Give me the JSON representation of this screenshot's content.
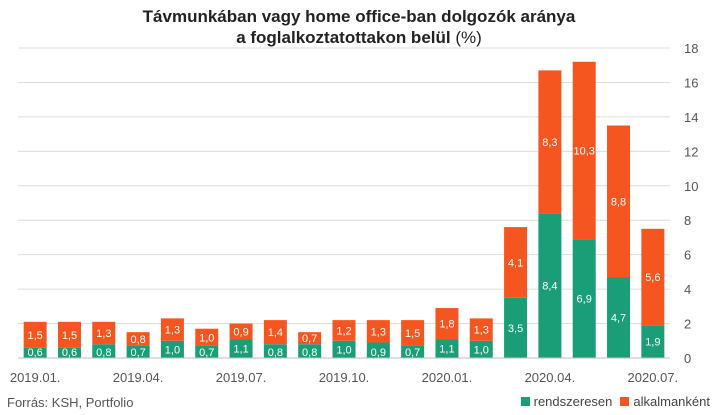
{
  "chart_data": {
    "type": "bar",
    "stacked": true,
    "title_line1": "Távmunkában vagy home office-ban dolgozók aránya",
    "title_line2": "a foglalkoztatottakon belül",
    "title_unit": "(%)",
    "categories": [
      "2019.01.",
      "2019.02.",
      "2019.03.",
      "2019.04.",
      "2019.05.",
      "2019.06.",
      "2019.07.",
      "2019.08.",
      "2019.09.",
      "2019.10.",
      "2019.11.",
      "2019.12.",
      "2020.01.",
      "2020.02.",
      "2020.03.",
      "2020.04.",
      "2020.05.",
      "2020.06.",
      "2020.07."
    ],
    "x_tick_labels": [
      "2019.01.",
      "",
      "",
      "2019.04.",
      "",
      "",
      "2019.07.",
      "",
      "",
      "2019.10.",
      "",
      "",
      "2020.01.",
      "",
      "",
      "2020.04.",
      "",
      "",
      "2020.07."
    ],
    "series": [
      {
        "name": "rendszeresen",
        "color": "#1a9e77",
        "values": [
          0.6,
          0.6,
          0.8,
          0.7,
          1.0,
          0.7,
          1.1,
          0.8,
          0.8,
          1.0,
          0.9,
          0.7,
          1.1,
          1.0,
          3.5,
          8.4,
          6.9,
          4.7,
          1.9
        ],
        "labels": [
          "0,6",
          "0,6",
          "0,8",
          "0,7",
          "1,0",
          "0,7",
          "1,1",
          "0,8",
          "0,8",
          "1,0",
          "0,9",
          "0,7",
          "1,1",
          "1,0",
          "3,5",
          "8,4",
          "6,9",
          "4,7",
          "1,9"
        ]
      },
      {
        "name": "alkalmanként",
        "color": "#f5561f",
        "values": [
          1.5,
          1.5,
          1.3,
          0.8,
          1.3,
          1.0,
          0.9,
          1.4,
          0.7,
          1.2,
          1.3,
          1.5,
          1.8,
          1.3,
          4.1,
          8.3,
          10.3,
          8.8,
          5.6
        ],
        "labels": [
          "1,5",
          "1,5",
          "1,3",
          "0,8",
          "1,3",
          "1,0",
          "0,9",
          "1,4",
          "0,7",
          "1,2",
          "1,3",
          "1,5",
          "1,8",
          "1,3",
          "4,1",
          "8,3",
          "10,3",
          "8,8",
          "5,6"
        ]
      }
    ],
    "ylim": [
      0,
      18
    ],
    "yticks": [
      "0",
      "2",
      "4",
      "6",
      "8",
      "10",
      "12",
      "14",
      "16",
      "18"
    ],
    "y_axis_side": "right",
    "grid": true,
    "legend_position": "bottom-right"
  },
  "footer": {
    "source": "Forrás: KSH, Portfolio"
  }
}
